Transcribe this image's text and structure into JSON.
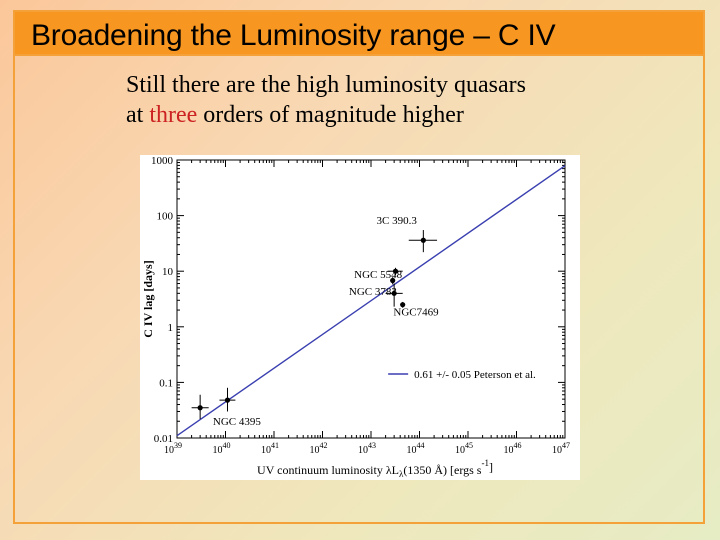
{
  "slide": {
    "title": "Broadening the Luminosity range – C IV",
    "body": {
      "line1": "Still there are the high luminosity quasars",
      "line2_before": "at ",
      "line2_highlight": "three",
      "line2_after": " orders of magnitude higher"
    },
    "colors": {
      "title_bar": "#f79621",
      "highlight": "#cc2222",
      "fit_line": "#3a3fb0"
    }
  },
  "chart_data": {
    "type": "scatter",
    "x_scale": "log",
    "y_scale": "log",
    "xlim": [
      1e+39,
      1e+47
    ],
    "ylim": [
      0.01,
      1000
    ],
    "x_ticks": [
      {
        "base": "10",
        "exp": "39"
      },
      {
        "base": "10",
        "exp": "40"
      },
      {
        "base": "10",
        "exp": "41"
      },
      {
        "base": "10",
        "exp": "42"
      },
      {
        "base": "10",
        "exp": "43"
      },
      {
        "base": "10",
        "exp": "44"
      },
      {
        "base": "10",
        "exp": "45"
      },
      {
        "base": "10",
        "exp": "46"
      },
      {
        "base": "10",
        "exp": "47"
      }
    ],
    "y_ticks": [
      "0.01",
      "0.1",
      "1",
      "10",
      "100",
      "1000"
    ],
    "xlabel": {
      "pre": "UV continuum luminosity λL",
      "sub": "λ",
      "mid": "(1350 Å)  [ergs s",
      "sup": "-1",
      "post": "]"
    },
    "ylabel": "C IV lag [days]",
    "points": [
      {
        "x": 3e+39,
        "y": 0.035,
        "x_err": [
          2e+39,
          4.5e+39
        ],
        "y_err": [
          0.022,
          0.06
        ]
      },
      {
        "x": 1.1e+40,
        "y": 0.048,
        "x_err": [
          7.5e+39,
          1.6e+40
        ],
        "y_err": [
          0.03,
          0.08
        ]
      },
      {
        "x": 3e+43,
        "y": 4.0,
        "x_err": [
          2e+43,
          4.5e+43
        ],
        "y_err": [
          2.3,
          6.0
        ]
      },
      {
        "x": 3.2e+43,
        "y": 10.0,
        "x_err": [
          2.2e+43,
          4.5e+43
        ],
        "y_err": [
          8.5,
          11.5
        ]
      },
      {
        "x": 2.8e+43,
        "y": 6.8,
        "x_err": [
          2.5e+43,
          3.1e+43
        ],
        "y_err": [
          5.8,
          7.8
        ]
      },
      {
        "x": 4.5e+43,
        "y": 2.5,
        "x_err": [
          4.3e+43,
          4.7e+43
        ],
        "y_err": [
          2.2,
          2.8
        ]
      },
      {
        "x": 1.2e+44,
        "y": 36.0,
        "x_err": [
          6e+43,
          2.3e+44
        ],
        "y_err": [
          22.0,
          55.0
        ]
      }
    ],
    "annotations": [
      {
        "text": "3C 390.3",
        "x": 1.3e+43,
        "y": 70
      },
      {
        "text": "NGC 5548",
        "x": 4.5e+42,
        "y": 7.5
      },
      {
        "text": "NGC 3783",
        "x": 3.5e+42,
        "y": 3.7
      },
      {
        "text": "NGC7469",
        "x": 2.9e+43,
        "y": 1.6
      },
      {
        "text": "NGC 4395",
        "x": 5.5e+39,
        "y": 0.017
      }
    ],
    "fit_line": {
      "x": [
        1e+39,
        1e+47
      ],
      "y": [
        0.011,
        790
      ]
    },
    "legend": {
      "text": "0.61 +/- 0.05 Peterson et al.",
      "position": "bottom-right"
    },
    "grid": false
  }
}
